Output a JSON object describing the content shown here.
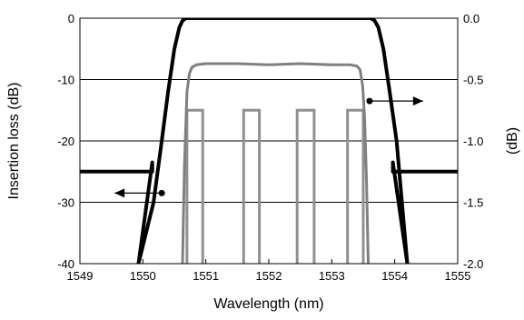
{
  "chart_data": {
    "type": "line",
    "xlabel": "Wavelength (nm)",
    "ylabel": "Insertion loss (dB)",
    "y2label": "(dB)",
    "xlim": [
      1549,
      1555
    ],
    "ylim": [
      -40,
      0
    ],
    "y2lim": [
      -2.0,
      0.0
    ],
    "xticks": [
      "1549",
      "1550",
      "1551",
      "1552",
      "1553",
      "1554",
      "1555"
    ],
    "yticks": [
      "0",
      "-10",
      "-20",
      "-30",
      "-40"
    ],
    "y2ticks": [
      "0.0",
      "-0.5",
      "-1.0",
      "-1.5",
      "-2.0"
    ],
    "grid": {
      "horizontal": true,
      "vertical": false
    },
    "colors": {
      "wide_filter": "#000000",
      "ripple_curve": "#808080",
      "channels": "#909090"
    },
    "series": [
      {
        "axis": "left",
        "color": "#000000",
        "x": [
          1549.0,
          1550.15,
          1550.15,
          1549.93,
          1550.17,
          1550.3,
          1550.4,
          1550.5,
          1550.58,
          1550.63,
          1550.68,
          1551.0,
          1552.0,
          1553.0,
          1553.62,
          1553.68,
          1553.74,
          1553.82,
          1553.92,
          1554.03,
          1554.2,
          1553.97,
          1553.97,
          1555.0
        ],
        "y": [
          -25.0,
          -25.0,
          -23.5,
          -40.0,
          -30.0,
          -20.0,
          -12.0,
          -5.0,
          -1.5,
          -0.4,
          0.0,
          0.0,
          0.0,
          0.0,
          0.0,
          -0.4,
          -1.5,
          -5.0,
          -12.0,
          -20.0,
          -40.0,
          -23.5,
          -25.0,
          -25.0
        ]
      },
      {
        "axis": "right",
        "color": "#808080",
        "x": [
          1550.63,
          1550.66,
          1550.7,
          1550.74,
          1550.78,
          1550.85,
          1551.0,
          1551.5,
          1552.0,
          1552.5,
          1553.0,
          1553.3,
          1553.4,
          1553.45,
          1553.49,
          1553.52,
          1553.55,
          1553.58
        ],
        "y": [
          -2.0,
          -1.2,
          -0.6,
          -0.45,
          -0.4,
          -0.38,
          -0.37,
          -0.37,
          -0.38,
          -0.37,
          -0.38,
          -0.38,
          -0.39,
          -0.42,
          -0.55,
          -0.8,
          -1.3,
          -2.0
        ]
      }
    ],
    "channels": {
      "axis": "left",
      "top": -15,
      "passbands": [
        [
          1550.7,
          1550.95
        ],
        [
          1551.6,
          1551.85
        ],
        [
          1552.45,
          1552.72
        ],
        [
          1553.25,
          1553.5
        ]
      ]
    },
    "annotations": [
      {
        "marker": [
          1550.3,
          -28.5
        ],
        "arrow_to": [
          1549.55,
          -28.5
        ],
        "points_to": "left axis"
      },
      {
        "marker": [
          1553.6,
          -13.5
        ],
        "arrow_to": [
          1554.45,
          -13.5
        ],
        "points_to": "right axis"
      }
    ]
  }
}
